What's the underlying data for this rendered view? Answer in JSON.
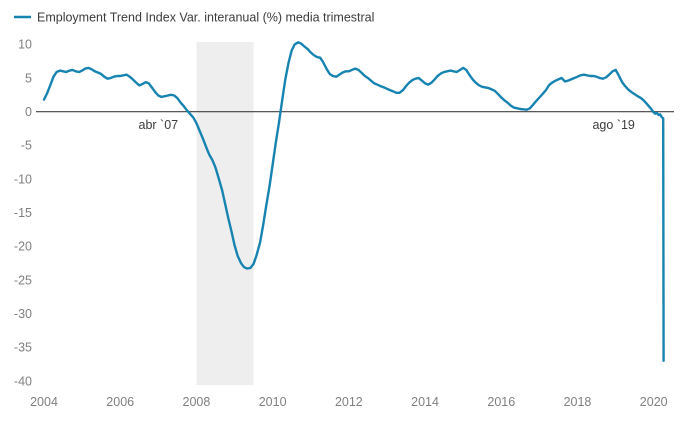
{
  "legend": {
    "label": "Employment Trend Index Var. interanual (%) media trimestral"
  },
  "colors": {
    "line": "#1783b0",
    "band": "#eeeeee",
    "zero_line": "#404040",
    "tick_text": "#808080",
    "annotation_text": "#3c3c3c",
    "background": "#ffffff"
  },
  "chart_data": {
    "type": "line",
    "title": "Employment Trend Index Var. interanual (%) media trimestral",
    "xlabel": "",
    "ylabel": "",
    "grid": false,
    "zero_line": true,
    "legend_position": "top-left",
    "xlim": [
      2004,
      2020.48
    ],
    "ylim": [
      -40.6,
      10.35
    ],
    "x_ticks": [
      2004,
      2006,
      2008,
      2010,
      2012,
      2014,
      2016,
      2018,
      2020
    ],
    "y_ticks": [
      10,
      5,
      0,
      -5,
      -10,
      -15,
      -20,
      -25,
      -30,
      -35,
      -40
    ],
    "shaded_region": {
      "x_start": 2008.0,
      "x_end": 2009.5,
      "name": "recession-band"
    },
    "annotations": [
      {
        "text": "abr `07",
        "x": 2007.0,
        "y": -2.0
      },
      {
        "text": "ago `19",
        "x": 2018.95,
        "y": -2.0
      }
    ],
    "series": [
      {
        "name": "Employment Trend Index Var. interanual (%) media trimestral",
        "x": [
          2004.0,
          2004.08,
          2004.17,
          2004.25,
          2004.33,
          2004.42,
          2004.5,
          2004.58,
          2004.67,
          2004.75,
          2004.83,
          2004.92,
          2005.0,
          2005.08,
          2005.17,
          2005.25,
          2005.33,
          2005.42,
          2005.5,
          2005.58,
          2005.67,
          2005.75,
          2005.83,
          2005.92,
          2006.0,
          2006.08,
          2006.17,
          2006.25,
          2006.33,
          2006.42,
          2006.5,
          2006.58,
          2006.67,
          2006.75,
          2006.83,
          2006.92,
          2007.0,
          2007.08,
          2007.17,
          2007.25,
          2007.33,
          2007.42,
          2007.5,
          2007.58,
          2007.67,
          2007.75,
          2007.83,
          2007.92,
          2008.0,
          2008.08,
          2008.17,
          2008.25,
          2008.33,
          2008.42,
          2008.5,
          2008.58,
          2008.67,
          2008.75,
          2008.83,
          2008.92,
          2009.0,
          2009.08,
          2009.17,
          2009.25,
          2009.33,
          2009.42,
          2009.5,
          2009.58,
          2009.67,
          2009.75,
          2009.83,
          2009.92,
          2010.0,
          2010.08,
          2010.17,
          2010.25,
          2010.33,
          2010.42,
          2010.5,
          2010.58,
          2010.67,
          2010.75,
          2010.83,
          2010.92,
          2011.0,
          2011.08,
          2011.17,
          2011.25,
          2011.33,
          2011.42,
          2011.5,
          2011.58,
          2011.67,
          2011.75,
          2011.83,
          2011.92,
          2012.0,
          2012.08,
          2012.17,
          2012.25,
          2012.33,
          2012.42,
          2012.5,
          2012.58,
          2012.67,
          2012.75,
          2012.83,
          2012.92,
          2013.0,
          2013.08,
          2013.17,
          2013.25,
          2013.33,
          2013.42,
          2013.5,
          2013.58,
          2013.67,
          2013.75,
          2013.83,
          2013.92,
          2014.0,
          2014.08,
          2014.17,
          2014.25,
          2014.33,
          2014.42,
          2014.5,
          2014.58,
          2014.67,
          2014.75,
          2014.83,
          2014.92,
          2015.0,
          2015.08,
          2015.17,
          2015.25,
          2015.33,
          2015.42,
          2015.5,
          2015.58,
          2015.67,
          2015.75,
          2015.83,
          2015.92,
          2016.0,
          2016.08,
          2016.17,
          2016.25,
          2016.33,
          2016.42,
          2016.5,
          2016.58,
          2016.67,
          2016.75,
          2016.83,
          2016.92,
          2017.0,
          2017.08,
          2017.17,
          2017.25,
          2017.33,
          2017.42,
          2017.5,
          2017.58,
          2017.67,
          2017.75,
          2017.83,
          2017.92,
          2018.0,
          2018.08,
          2018.17,
          2018.25,
          2018.33,
          2018.42,
          2018.5,
          2018.58,
          2018.67,
          2018.75,
          2018.83,
          2018.92,
          2019.0,
          2019.08,
          2019.17,
          2019.25,
          2019.33,
          2019.42,
          2019.5,
          2019.58,
          2019.67,
          2019.75,
          2019.83,
          2019.92,
          2020.0,
          2020.04,
          2020.08,
          2020.13,
          2020.17,
          2020.21,
          2020.25,
          2020.26
        ],
        "values": [
          1.8,
          2.7,
          4.0,
          5.2,
          5.9,
          6.1,
          6.0,
          5.9,
          6.1,
          6.2,
          6.0,
          5.9,
          6.1,
          6.4,
          6.5,
          6.3,
          6.0,
          5.8,
          5.6,
          5.2,
          4.9,
          5.0,
          5.2,
          5.3,
          5.3,
          5.4,
          5.5,
          5.2,
          4.8,
          4.3,
          3.9,
          4.1,
          4.4,
          4.2,
          3.6,
          2.9,
          2.4,
          2.2,
          2.3,
          2.4,
          2.5,
          2.4,
          2.0,
          1.4,
          0.8,
          0.2,
          -0.3,
          -0.9,
          -1.7,
          -2.8,
          -4.0,
          -5.2,
          -6.3,
          -7.2,
          -8.3,
          -9.8,
          -11.6,
          -13.6,
          -15.7,
          -17.8,
          -19.8,
          -21.4,
          -22.5,
          -23.1,
          -23.3,
          -23.2,
          -22.6,
          -21.3,
          -19.4,
          -16.9,
          -14.0,
          -11.0,
          -7.9,
          -4.7,
          -1.5,
          1.7,
          4.7,
          7.3,
          9.1,
          10.0,
          10.3,
          10.1,
          9.7,
          9.3,
          8.8,
          8.4,
          8.1,
          8.0,
          7.3,
          6.3,
          5.6,
          5.3,
          5.2,
          5.5,
          5.8,
          6.0,
          6.0,
          6.2,
          6.4,
          6.2,
          5.8,
          5.3,
          5.0,
          4.6,
          4.2,
          4.0,
          3.8,
          3.6,
          3.4,
          3.2,
          3.0,
          2.8,
          2.8,
          3.2,
          3.8,
          4.3,
          4.7,
          4.9,
          5.0,
          4.6,
          4.2,
          4.0,
          4.3,
          4.8,
          5.3,
          5.7,
          5.9,
          6.0,
          6.1,
          6.0,
          5.9,
          6.2,
          6.5,
          6.2,
          5.4,
          4.8,
          4.3,
          3.9,
          3.7,
          3.6,
          3.5,
          3.3,
          3.1,
          2.6,
          2.1,
          1.7,
          1.3,
          0.9,
          0.6,
          0.5,
          0.4,
          0.35,
          0.3,
          0.5,
          1.0,
          1.6,
          2.1,
          2.6,
          3.2,
          3.9,
          4.3,
          4.6,
          4.8,
          5.0,
          4.5,
          4.6,
          4.8,
          5.0,
          5.2,
          5.4,
          5.5,
          5.4,
          5.3,
          5.3,
          5.2,
          5.0,
          4.9,
          5.1,
          5.5,
          6.0,
          6.2,
          5.4,
          4.4,
          3.8,
          3.3,
          2.9,
          2.6,
          2.3,
          2.0,
          1.6,
          1.1,
          0.5,
          -0.1,
          -0.3,
          -0.2,
          -0.5,
          -0.4,
          -0.8,
          -1.0,
          -37.0
        ]
      }
    ]
  }
}
